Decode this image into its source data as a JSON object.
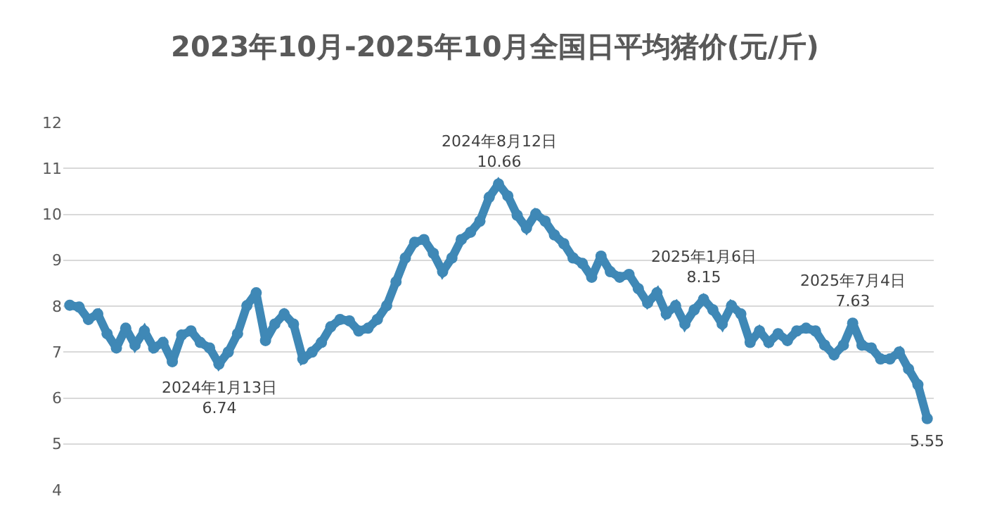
{
  "chart_data": {
    "type": "line",
    "title": "2023年10月-2025年10月全国日平均猪价(元/斤)",
    "categories": [
      null,
      null,
      null,
      null,
      null,
      null,
      null,
      null,
      null,
      null,
      null,
      null,
      null,
      null,
      null,
      null,
      null,
      null,
      null,
      null,
      null,
      null,
      null,
      null,
      null,
      null,
      null,
      null,
      null,
      null,
      null,
      null,
      null,
      null,
      null,
      null,
      null,
      null,
      null,
      null,
      null,
      null,
      null,
      null,
      null,
      null,
      null,
      null,
      null,
      null,
      null,
      null,
      null,
      null,
      null,
      null,
      null,
      null,
      null,
      null,
      null,
      null,
      null,
      null,
      null,
      null,
      null,
      null,
      null,
      null,
      null,
      null,
      null,
      null,
      null,
      null,
      null,
      null,
      null,
      null,
      null,
      null,
      null,
      null,
      null,
      null,
      null,
      null,
      null,
      null,
      null,
      null,
      null
    ],
    "series": [
      {
        "color": "#3f88b6",
        "values": [
          8.02,
          7.98,
          7.71,
          7.83,
          7.4,
          7.09,
          7.52,
          7.15,
          7.46,
          7.09,
          7.21,
          6.79,
          7.37,
          7.46,
          7.21,
          7.09,
          6.74,
          7.0,
          7.4,
          8.01,
          8.29,
          7.25,
          7.61,
          7.83,
          7.61,
          6.85,
          7.0,
          7.21,
          7.55,
          7.71,
          7.68,
          7.46,
          7.52,
          7.71,
          8.01,
          8.53,
          9.05,
          9.39,
          9.45,
          9.15,
          8.75,
          9.05,
          9.45,
          9.61,
          9.85,
          10.37,
          10.66,
          10.4,
          9.98,
          9.7,
          10.01,
          9.85,
          9.55,
          9.36,
          9.05,
          8.93,
          8.63,
          9.09,
          8.75,
          8.63,
          8.69,
          8.38,
          8.07,
          8.29,
          7.83,
          8.01,
          7.61,
          7.92,
          8.15,
          7.92,
          7.61,
          8.01,
          7.83,
          7.21,
          7.46,
          7.21,
          7.4,
          7.25,
          7.46,
          7.52,
          7.46,
          7.15,
          6.94,
          7.15,
          7.63,
          7.15,
          7.09,
          6.85,
          6.85,
          7.0,
          6.63,
          6.29,
          5.55
        ]
      }
    ],
    "ylim": [
      4,
      12
    ],
    "yticks": [
      4,
      5,
      6,
      7,
      8,
      9,
      10,
      11,
      12
    ],
    "grid": "y",
    "marker": "circle",
    "annotations": [
      {
        "text": "2024年1月13日\n6.74",
        "y": 6.74
      },
      {
        "text": "2024年8月12日\n10.66",
        "y": 10.66
      },
      {
        "text": "2025年1月6日\n8.15",
        "y": 8.15
      },
      {
        "text": "2025年7月4日\n7.63",
        "y": 7.63
      },
      {
        "text": "5.55",
        "y": 5.55
      }
    ]
  }
}
